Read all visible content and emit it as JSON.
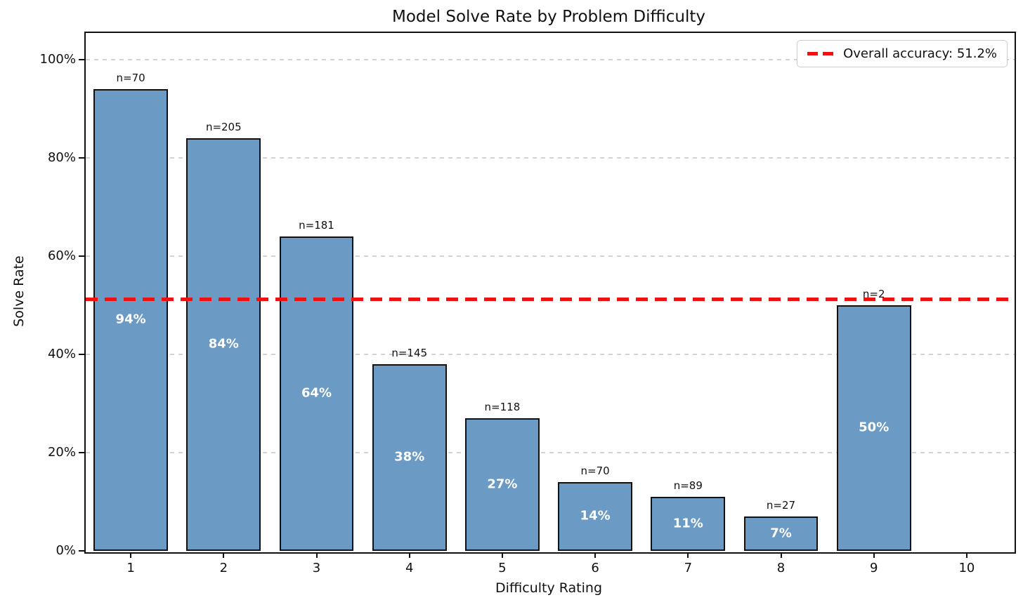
{
  "figure": {
    "title": "Model Solve Rate by Problem Difficulty",
    "xlabel": "Difficulty Rating",
    "ylabel": "Solve Rate"
  },
  "legend": {
    "label": "Overall accuracy: 51.2%"
  },
  "chart_data": {
    "type": "bar",
    "title": "Model Solve Rate by Problem Difficulty",
    "xlabel": "Difficulty Rating",
    "ylabel": "Solve Rate",
    "categories": [
      "1",
      "2",
      "3",
      "4",
      "5",
      "6",
      "7",
      "8",
      "9",
      "10"
    ],
    "values_percent": [
      94,
      84,
      64,
      38,
      27,
      14,
      11,
      7,
      50,
      0
    ],
    "bar_labels": [
      "94%",
      "84%",
      "64%",
      "38%",
      "27%",
      "14%",
      "11%",
      "7%",
      "50%",
      ""
    ],
    "sample_sizes": [
      70,
      205,
      181,
      145,
      118,
      70,
      89,
      27,
      2,
      null
    ],
    "n_labels": [
      "n=70",
      "n=205",
      "n=181",
      "n=145",
      "n=118",
      "n=70",
      "n=89",
      "n=27",
      "n=2",
      ""
    ],
    "ytick_values": [
      0,
      20,
      40,
      60,
      80,
      100
    ],
    "ytick_labels": [
      "0%",
      "20%",
      "40%",
      "60%",
      "80%",
      "100%"
    ],
    "ylim": [
      0,
      105.7
    ],
    "grid": "horizontal-dashed",
    "legend_position": "upper right",
    "reference_line": {
      "label": "Overall accuracy: 51.2%",
      "value_percent": 51.2,
      "style": "dashed"
    },
    "colors": {
      "bar_fill": "#6b9ac4",
      "bar_edge": "#111111",
      "reference_line": "#ee1111",
      "grid": "#d2d2d2",
      "bar_label_text": "#ffffff"
    }
  }
}
